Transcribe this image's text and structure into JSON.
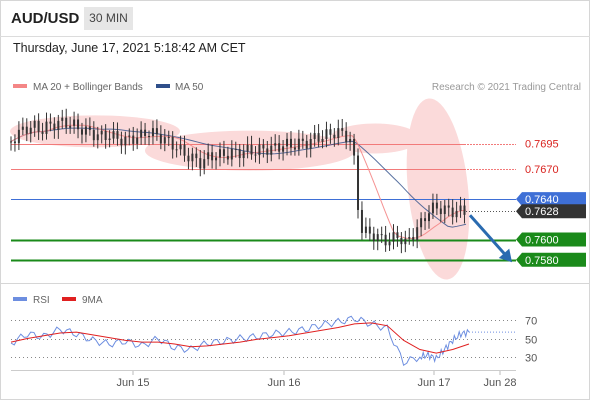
{
  "header": {
    "symbol": "AUD/USD",
    "timeframe": "30 MIN"
  },
  "datetime": "Thursday, June 17, 2021 5:18:42 AM CET",
  "credit": "Research © 2021 Trading Central",
  "colors": {
    "ma20": "#f48686",
    "ma50": "#2f4f8a",
    "bollinger_fill": "#fbdada",
    "level_red": "#f27a7a",
    "level_blue": "#3e6fd6",
    "level_green": "#1a8a1a",
    "current_box": "#333333",
    "arrow": "#2a6bb0",
    "rsi": "#6d8ee0",
    "rsi_ma": "#e02020"
  },
  "chart_data": [
    {
      "type": "line",
      "title": "",
      "legend": [
        {
          "name": "MA 20 + Bollinger Bands",
          "color": "#f48686"
        },
        {
          "name": "MA 50",
          "color": "#2f4f8a"
        }
      ],
      "x_ticks": [
        "Jun 15",
        "Jun 16",
        "Jun 17",
        "Jun 28"
      ],
      "ylim": [
        0.756,
        0.774
      ],
      "levels": [
        {
          "value": 0.7695,
          "label": "0.7695",
          "kind": "resistance"
        },
        {
          "value": 0.767,
          "label": "0.7670",
          "kind": "resistance"
        },
        {
          "value": 0.764,
          "label": "0.7640",
          "kind": "pivot"
        },
        {
          "value": 0.7628,
          "label": "0.7628",
          "kind": "current"
        },
        {
          "value": 0.76,
          "label": "0.7600",
          "kind": "support"
        },
        {
          "value": 0.758,
          "label": "0.7580",
          "kind": "support"
        }
      ],
      "series": [
        {
          "name": "AUD/USD",
          "t": [
            0,
            5,
            10,
            15,
            20,
            25,
            30,
            35,
            40,
            45,
            50,
            55,
            60,
            65,
            70,
            75,
            80,
            85,
            90,
            95,
            100,
            105,
            110,
            115,
            120,
            125,
            130,
            135,
            140,
            145,
            150,
            155,
            160,
            165,
            170,
            175,
            180,
            185,
            190,
            195,
            200,
            205,
            210,
            215,
            220,
            225,
            230,
            235,
            240,
            245,
            250,
            253,
            255,
            260,
            265,
            270,
            275,
            280,
            285,
            290,
            295,
            300
          ],
          "values": [
            0.7697,
            0.7705,
            0.771,
            0.7712,
            0.7708,
            0.7713,
            0.7715,
            0.7716,
            0.7714,
            0.771,
            0.7707,
            0.7704,
            0.7702,
            0.7703,
            0.77,
            0.7698,
            0.77,
            0.7702,
            0.7707,
            0.7704,
            0.77,
            0.7696,
            0.769,
            0.7684,
            0.768,
            0.7676,
            0.7681,
            0.7684,
            0.7683,
            0.7686,
            0.7686,
            0.7688,
            0.7687,
            0.7689,
            0.769,
            0.7691,
            0.7694,
            0.7693,
            0.7695,
            0.7696,
            0.77,
            0.7702,
            0.7704,
            0.7707,
            0.7703,
            0.7698,
            0.7612,
            0.7606,
            0.7604,
            0.76,
            0.7599,
            0.7602,
            0.7604,
            0.7596,
            0.7605,
            0.7615,
            0.7628,
            0.7632,
            0.763,
            0.7628,
            0.7628,
            0.7628
          ]
        }
      ],
      "forecast": {
        "from": 0.7628,
        "to": 0.758
      }
    },
    {
      "type": "line",
      "title": "",
      "legend": [
        {
          "name": "RSI",
          "color": "#6d8ee0"
        },
        {
          "name": "9MA",
          "color": "#e02020"
        }
      ],
      "ylim": [
        20,
        80
      ],
      "y_ticks": [
        70,
        50,
        30
      ],
      "series": [
        {
          "name": "RSI",
          "t": [
            0,
            10,
            20,
            30,
            40,
            50,
            60,
            70,
            80,
            90,
            100,
            110,
            120,
            130,
            140,
            150,
            160,
            170,
            180,
            190,
            200,
            210,
            220,
            230,
            240,
            250,
            255,
            260,
            265,
            270,
            275,
            280
          ],
          "values": [
            45,
            55,
            52,
            60,
            55,
            48,
            44,
            47,
            42,
            50,
            40,
            38,
            45,
            47,
            50,
            52,
            55,
            57,
            60,
            65,
            68,
            72,
            66,
            61,
            24,
            30,
            32,
            28,
            38,
            48,
            55,
            57
          ]
        },
        {
          "name": "9MA",
          "t": [
            0,
            10,
            20,
            30,
            40,
            50,
            60,
            70,
            80,
            90,
            100,
            110,
            120,
            130,
            140,
            150,
            160,
            170,
            180,
            190,
            200,
            210,
            220,
            230,
            240,
            250,
            260,
            270,
            280
          ],
          "values": [
            46,
            50,
            53,
            56,
            57,
            54,
            51,
            48,
            46,
            46,
            44,
            41,
            42,
            44,
            46,
            49,
            51,
            53,
            56,
            59,
            62,
            66,
            67,
            64,
            48,
            38,
            34,
            38,
            44
          ]
        }
      ]
    }
  ]
}
